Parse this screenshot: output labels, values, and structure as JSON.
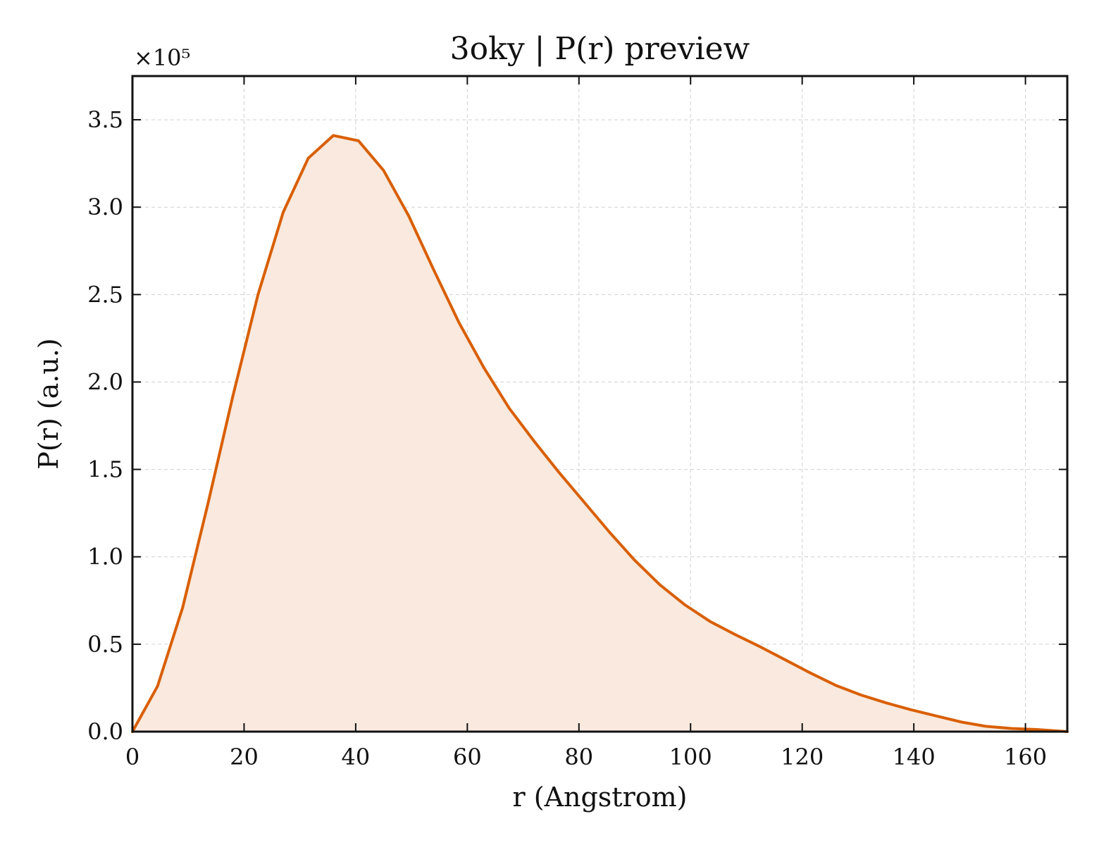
{
  "chart_data": {
    "type": "area",
    "title": "3oky | P(r) preview",
    "xlabel": "r (Angstrom)",
    "ylabel": "P(r) (a.u.)",
    "y_multiplier_label": "×10⁵",
    "y_scale": 100000,
    "xlim": [
      0,
      167.5
    ],
    "ylim": [
      0,
      375000
    ],
    "xticks": [
      0,
      20,
      40,
      60,
      80,
      100,
      120,
      140,
      160
    ],
    "xtick_labels": [
      "0",
      "20",
      "40",
      "60",
      "80",
      "100",
      "120",
      "140",
      "160"
    ],
    "yticks": [
      0,
      50000,
      100000,
      150000,
      200000,
      250000,
      300000,
      350000
    ],
    "ytick_labels": [
      "0.0",
      "0.5",
      "1.0",
      "1.5",
      "2.0",
      "2.5",
      "3.0",
      "3.5"
    ],
    "grid": true,
    "line_color": "#d95f02",
    "fill_color": "#f9e9de",
    "series": [
      {
        "x": [
          0,
          4.5,
          9,
          13.5,
          18,
          22.5,
          27,
          31.5,
          36,
          40.5,
          45,
          49.5,
          54,
          58.5,
          63,
          67.5,
          72,
          76.5,
          81,
          85.5,
          90,
          94.5,
          99,
          103.5,
          108,
          112.5,
          117,
          121.5,
          126,
          130.5,
          135,
          139.5,
          144,
          148.5,
          153,
          157.5,
          162,
          167.5
        ],
        "y": [
          0,
          26000,
          71000,
          130000,
          192000,
          250000,
          297000,
          328000,
          341000,
          338000,
          321000,
          295000,
          264000,
          234000,
          208000,
          185000,
          166000,
          148000,
          131000,
          114000,
          98000,
          84000,
          72500,
          63000,
          55500,
          48500,
          41000,
          33500,
          26500,
          21000,
          16500,
          12500,
          9000,
          5500,
          3000,
          1800,
          1200,
          0
        ]
      }
    ]
  }
}
